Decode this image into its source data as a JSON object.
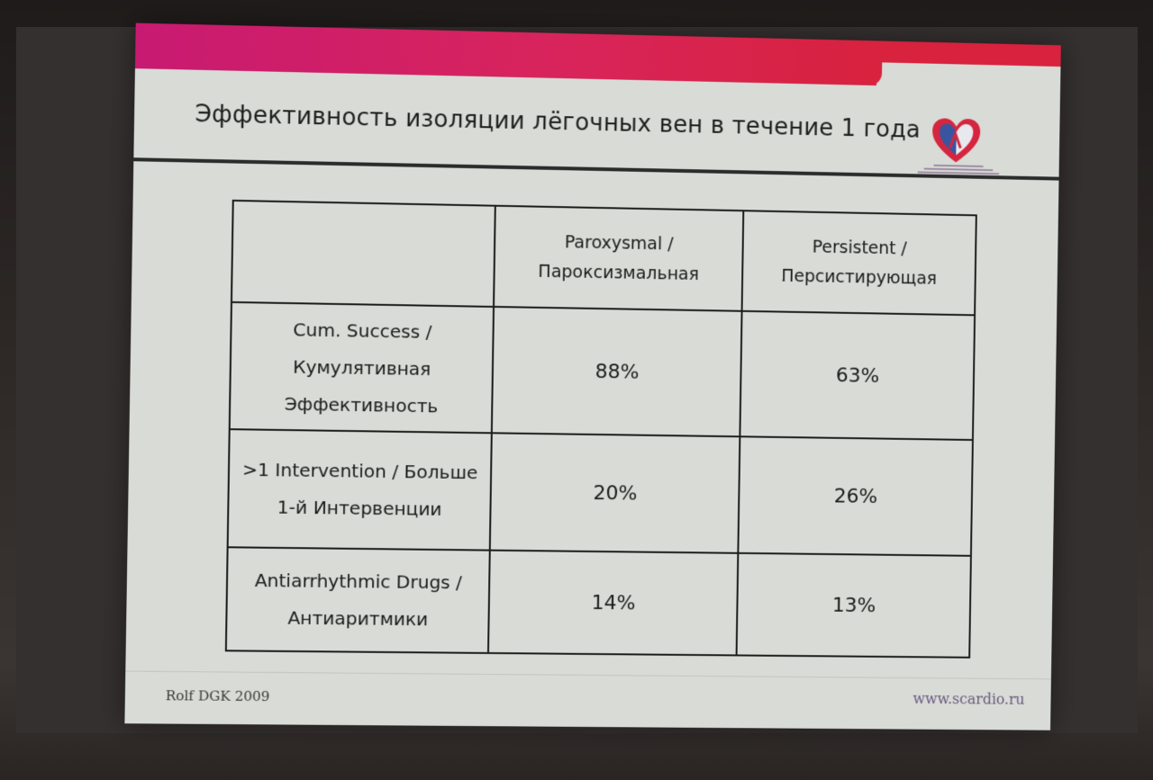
{
  "slide": {
    "title": "Эффективность изоляции лёгочных вен в течение 1 года",
    "source": "Rolf DGK 2009",
    "website": "www.scardio.ru",
    "logo_icon": "heart-logo-icon",
    "colors": {
      "accent_band": "#d8245c",
      "slide_background": "#d9dbd6",
      "logo_red": "#d5263f",
      "logo_blue": "#3a55a0"
    }
  },
  "table": {
    "headers": [
      "",
      "Paroxysmal / Пароксизмальная",
      "Persistent / Персистирующая"
    ],
    "rows": [
      {
        "label": "Cum. Success / Кумулятивная Эффективность",
        "paroxysmal": "88%",
        "persistent": "63%"
      },
      {
        "label": ">1 Intervention / Больше 1-й Интервенции",
        "paroxysmal": "20%",
        "persistent": "26%"
      },
      {
        "label": "Antiarrhythmic Drugs / Антиаритмики",
        "paroxysmal": "14%",
        "persistent": "13%"
      }
    ]
  }
}
